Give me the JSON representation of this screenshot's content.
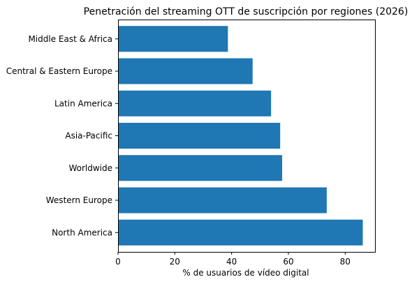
{
  "chart_data": {
    "type": "bar",
    "orientation": "horizontal",
    "title": "Penetración del streaming OTT de suscripción por regiones (2026)",
    "xlabel": "% de usuarios de vídeo digital",
    "ylabel": "",
    "categories": [
      "North America",
      "Western Europe",
      "Worldwide",
      "Asia-Pacific",
      "Latin America",
      "Central & Eastern Europe",
      "Middle East & Africa"
    ],
    "values": [
      86.2,
      73.5,
      57.8,
      57.1,
      53.9,
      47.4,
      38.7
    ],
    "xlim": [
      0,
      90.5
    ],
    "xticks": [
      0,
      20,
      40,
      60,
      80
    ],
    "grid": false,
    "legend": "none",
    "bar_color": "#1f77b4"
  }
}
